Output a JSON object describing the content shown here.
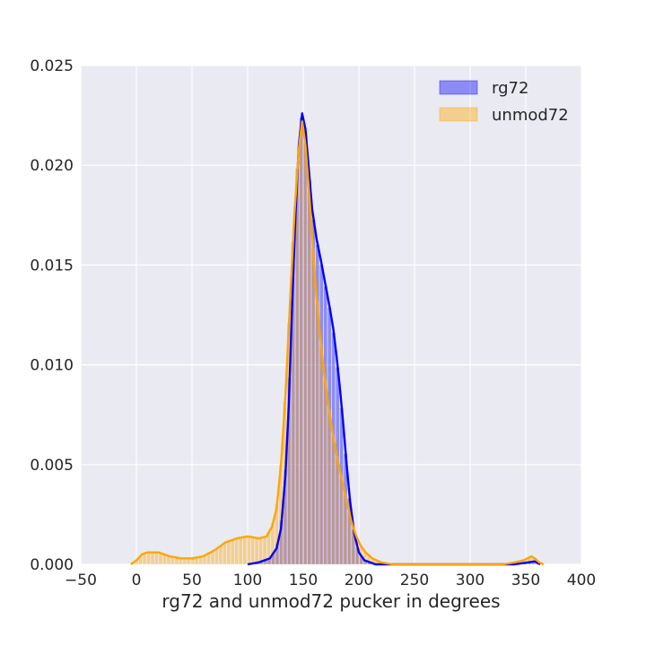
{
  "chart_data": {
    "type": "histogram-kde",
    "xlabel": "rg72 and unmod72 pucker in degrees",
    "ylabel": "",
    "xlim": [
      -50,
      400
    ],
    "ylim": [
      0,
      0.025
    ],
    "xticks": [
      "−50",
      "0",
      "50",
      "100",
      "150",
      "200",
      "250",
      "300",
      "350",
      "400"
    ],
    "xtick_values": [
      -50,
      0,
      50,
      100,
      150,
      200,
      250,
      300,
      350,
      400
    ],
    "yticks": [
      "0.000",
      "0.005",
      "0.010",
      "0.015",
      "0.020",
      "0.025"
    ],
    "ytick_values": [
      0,
      0.005,
      0.01,
      0.015,
      0.02,
      0.025
    ],
    "grid": true,
    "legend_position": "top-right",
    "background": "#eaeaf2",
    "series": [
      {
        "name": "rg72",
        "color": "#0000ff",
        "fill": "rgba(0,0,255,0.40)",
        "kde": [
          [
            100,
            0
          ],
          [
            110,
            0.0001
          ],
          [
            120,
            0.0003
          ],
          [
            126,
            0.0008
          ],
          [
            130,
            0.0018
          ],
          [
            134,
            0.0045
          ],
          [
            137,
            0.008
          ],
          [
            140,
            0.013
          ],
          [
            143,
            0.0175
          ],
          [
            146,
            0.021
          ],
          [
            149,
            0.0226
          ],
          [
            152,
            0.0218
          ],
          [
            155,
            0.0198
          ],
          [
            158,
            0.0178
          ],
          [
            162,
            0.0163
          ],
          [
            166,
            0.0152
          ],
          [
            170,
            0.014
          ],
          [
            174,
            0.0128
          ],
          [
            177,
            0.0118
          ],
          [
            180,
            0.0104
          ],
          [
            183,
            0.0088
          ],
          [
            186,
            0.007
          ],
          [
            189,
            0.005
          ],
          [
            192,
            0.0032
          ],
          [
            196,
            0.0015
          ],
          [
            200,
            0.0006
          ],
          [
            205,
            0.0002
          ],
          [
            215,
            0.0
          ],
          [
            340,
            0.0
          ],
          [
            352,
            0.0001
          ],
          [
            358,
            0.00015
          ],
          [
            363,
            0.0
          ]
        ]
      },
      {
        "name": "unmod72",
        "color": "#ffa500",
        "fill": "rgba(255,165,0,0.40)",
        "kde": [
          [
            -5,
            0
          ],
          [
            0,
            0.0002
          ],
          [
            5,
            0.0005
          ],
          [
            10,
            0.0006
          ],
          [
            20,
            0.0006
          ],
          [
            30,
            0.0004
          ],
          [
            40,
            0.0003
          ],
          [
            50,
            0.0003
          ],
          [
            60,
            0.0004
          ],
          [
            70,
            0.0007
          ],
          [
            80,
            0.0011
          ],
          [
            90,
            0.0013
          ],
          [
            100,
            0.0014
          ],
          [
            110,
            0.0013
          ],
          [
            117,
            0.0014
          ],
          [
            122,
            0.0019
          ],
          [
            126,
            0.0028
          ],
          [
            130,
            0.005
          ],
          [
            134,
            0.0085
          ],
          [
            138,
            0.013
          ],
          [
            142,
            0.0175
          ],
          [
            146,
            0.0208
          ],
          [
            149,
            0.0222
          ],
          [
            152,
            0.021
          ],
          [
            155,
            0.0188
          ],
          [
            158,
            0.0165
          ],
          [
            161,
            0.014
          ],
          [
            165,
            0.0115
          ],
          [
            169,
            0.0095
          ],
          [
            173,
            0.0078
          ],
          [
            177,
            0.0064
          ],
          [
            181,
            0.0052
          ],
          [
            185,
            0.0042
          ],
          [
            189,
            0.0032
          ],
          [
            193,
            0.0022
          ],
          [
            197,
            0.0015
          ],
          [
            201,
            0.001
          ],
          [
            206,
            0.0006
          ],
          [
            212,
            0.0003
          ],
          [
            220,
            0.0001
          ],
          [
            230,
            0.0
          ],
          [
            330,
            0.0
          ],
          [
            340,
            0.0001
          ],
          [
            348,
            0.0002
          ],
          [
            355,
            0.0004
          ],
          [
            358,
            0.0003
          ],
          [
            362,
            0.0001
          ],
          [
            366,
            0.0
          ]
        ]
      }
    ]
  }
}
